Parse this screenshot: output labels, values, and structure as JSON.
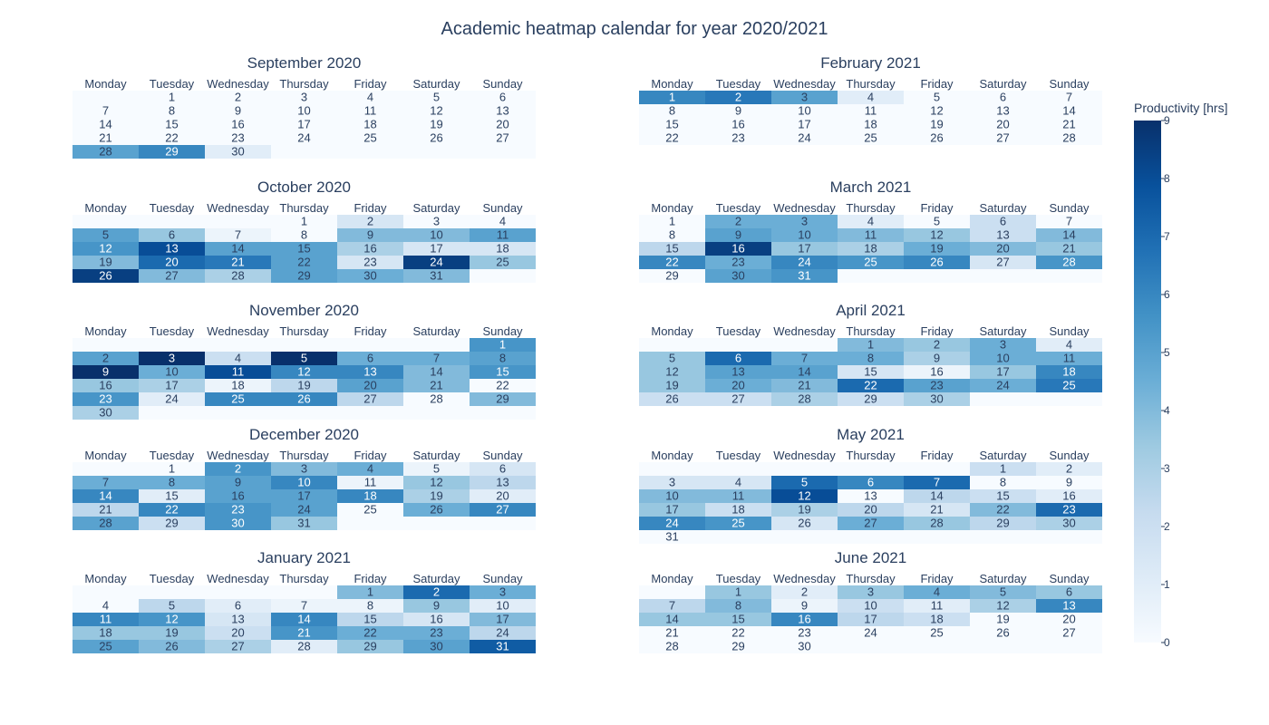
{
  "chart_data": {
    "type": "heatmap",
    "title": "Academic heatmap calendar for year 2020/2021",
    "weekdays": [
      "Monday",
      "Tuesday",
      "Wednesday",
      "Thursday",
      "Friday",
      "Saturday",
      "Sunday"
    ],
    "colorbar": {
      "title": "Productivity [hrs]",
      "range": [
        0,
        9
      ],
      "ticks": [
        0,
        1,
        2,
        3,
        4,
        5,
        6,
        7,
        8,
        9
      ]
    },
    "colorscale": [
      "#f7fbff",
      "#deebf7",
      "#c6dbef",
      "#9ecae1",
      "#6baed6",
      "#4292c6",
      "#2171b5",
      "#08519c",
      "#08306b"
    ],
    "months": [
      {
        "name": "September 2020",
        "first_weekday": 1,
        "values": [
          0,
          0,
          0,
          0,
          0,
          0,
          0,
          0,
          0,
          0,
          0,
          0,
          0,
          0,
          0,
          0,
          0,
          0,
          0,
          0,
          0,
          0,
          0,
          0,
          0,
          0,
          0,
          5,
          6,
          1
        ]
      },
      {
        "name": "October 2020",
        "first_weekday": 3,
        "values": [
          0,
          1.5,
          0,
          0,
          5,
          3.5,
          0.5,
          0,
          4,
          4,
          5,
          5.5,
          8,
          5,
          5,
          3,
          1.5,
          1.5,
          4,
          7,
          6.5,
          5,
          1.5,
          8.5,
          3.5,
          8.5,
          4,
          3,
          5,
          4.5,
          4
        ]
      },
      {
        "name": "November 2020",
        "first_weekday": 6,
        "values": [
          5.5,
          5,
          9,
          2,
          9,
          4.5,
          4.5,
          5,
          9,
          4.5,
          8,
          6,
          6,
          4,
          5.5,
          3.5,
          3,
          0.5,
          2.5,
          5,
          4,
          0,
          5.5,
          1,
          6,
          6,
          2.5,
          0,
          4,
          3
        ]
      },
      {
        "name": "December 2020",
        "first_weekday": 1,
        "values": [
          0,
          5.5,
          4,
          4.5,
          0.5,
          1.5,
          4.5,
          4.5,
          5,
          6,
          0.5,
          3.5,
          2.5,
          6,
          1,
          5,
          5,
          6,
          3,
          1,
          2.5,
          6,
          5.5,
          5,
          0,
          4.5,
          6,
          5,
          2,
          5.5,
          3.5
        ]
      },
      {
        "name": "January 2021",
        "first_weekday": 4,
        "values": [
          4,
          7,
          4.5,
          0,
          2.5,
          1,
          0.5,
          0.5,
          3.5,
          1,
          6,
          5.5,
          1.5,
          6,
          2.5,
          1.5,
          4,
          3.5,
          3.5,
          2,
          5.5,
          4.5,
          4.5,
          2.5,
          5,
          4,
          3,
          1,
          3.5,
          5,
          7.5
        ]
      },
      {
        "name": "February 2021",
        "first_weekday": 0,
        "values": [
          6,
          6.5,
          5,
          1,
          0,
          0,
          0,
          0,
          0,
          0,
          0,
          0,
          0,
          0,
          0,
          0,
          0,
          0,
          0,
          0,
          0,
          0,
          0,
          0,
          0,
          0,
          0,
          0
        ]
      },
      {
        "name": "March 2021",
        "first_weekday": 0,
        "values": [
          0,
          4.5,
          4.5,
          1,
          0,
          2,
          0,
          0,
          5,
          4.5,
          4,
          3.5,
          2,
          4,
          2.5,
          8.5,
          3.5,
          3,
          4.5,
          4,
          3.5,
          6,
          4.5,
          6,
          5.5,
          6,
          1.5,
          5.5,
          0,
          5,
          5.5
        ]
      },
      {
        "name": "April 2021",
        "first_weekday": 3,
        "values": [
          4,
          3.5,
          4.5,
          1,
          3.5,
          7,
          4.5,
          4.5,
          3,
          4.5,
          4.5,
          3.5,
          5,
          5,
          1.5,
          0.5,
          3.5,
          6,
          3.5,
          4.5,
          4,
          7,
          5,
          4.5,
          6.5,
          2,
          2,
          3,
          2,
          3
        ]
      },
      {
        "name": "May 2021",
        "first_weekday": 5,
        "values": [
          2,
          1,
          1.5,
          1.5,
          7,
          6,
          7,
          0,
          0,
          4,
          4,
          8,
          0,
          2.5,
          2,
          1,
          3.5,
          2,
          3,
          2.5,
          1.5,
          4,
          7,
          6,
          5.5,
          1.5,
          4.5,
          3.5,
          2.5,
          3,
          0
        ]
      },
      {
        "name": "June 2021",
        "first_weekday": 1,
        "values": [
          3.5,
          1,
          3.5,
          4.5,
          4,
          3.5,
          2.5,
          4,
          0.5,
          2,
          1,
          3,
          6,
          3.5,
          3.5,
          6,
          2.5,
          2,
          0,
          0,
          0,
          0,
          0,
          0,
          0,
          0,
          0,
          0,
          0,
          0
        ]
      }
    ]
  }
}
